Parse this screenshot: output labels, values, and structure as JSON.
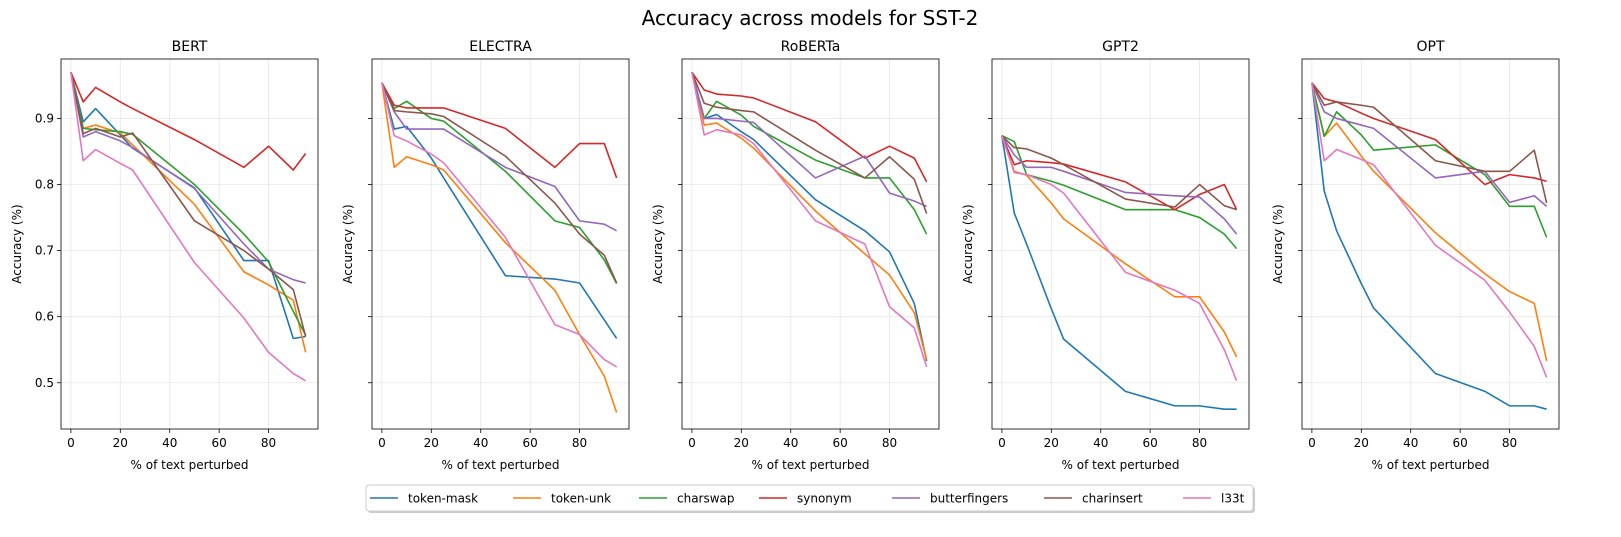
{
  "suptitle": "Accuracy across models for SST-2",
  "series_colors": {
    "token-mask": "#1f77b4",
    "token-unk": "#ff7f0e",
    "charswap": "#2ca02c",
    "synonym": "#d62728",
    "butterfingers": "#9467bd",
    "charinsert": "#8c564b",
    "l33t": "#e377c2"
  },
  "legend": [
    "token-mask",
    "token-unk",
    "charswap",
    "synonym",
    "butterfingers",
    "charinsert",
    "l33t"
  ],
  "chart_data": [
    {
      "type": "line",
      "title": "BERT",
      "xlabel": "% of text perturbed",
      "ylabel": "Accuracy (%)",
      "xlim": [
        -4,
        100
      ],
      "ylim": [
        0.43,
        0.99
      ],
      "xticks": [
        0,
        20,
        40,
        60,
        80
      ],
      "yticks": [
        0.5,
        0.6,
        0.7,
        0.8,
        0.9
      ],
      "grid": true,
      "x": [
        0,
        5,
        10,
        20,
        25,
        50,
        70,
        80,
        90,
        95
      ],
      "series": [
        {
          "name": "token-mask",
          "values": [
            0.97,
            0.895,
            0.915,
            0.875,
            0.855,
            0.795,
            0.685,
            0.685,
            0.567,
            0.57
          ]
        },
        {
          "name": "token-unk",
          "values": [
            0.97,
            0.885,
            0.89,
            0.878,
            0.86,
            0.77,
            0.668,
            0.648,
            0.625,
            0.546
          ]
        },
        {
          "name": "charswap",
          "values": [
            0.97,
            0.885,
            0.883,
            0.88,
            0.876,
            0.8,
            0.725,
            0.683,
            0.608,
            0.572
          ]
        },
        {
          "name": "synonym",
          "values": [
            0.97,
            0.925,
            0.947,
            0.925,
            0.915,
            0.868,
            0.826,
            0.858,
            0.822,
            0.847
          ]
        },
        {
          "name": "butterfingers",
          "values": [
            0.97,
            0.872,
            0.88,
            0.866,
            0.856,
            0.794,
            0.71,
            0.672,
            0.656,
            0.651
          ]
        },
        {
          "name": "charinsert",
          "values": [
            0.97,
            0.877,
            0.885,
            0.872,
            0.878,
            0.745,
            0.7,
            0.672,
            0.641,
            0.57
          ]
        },
        {
          "name": "l33t",
          "values": [
            0.97,
            0.836,
            0.853,
            0.832,
            0.822,
            0.682,
            0.598,
            0.546,
            0.514,
            0.503
          ]
        }
      ]
    },
    {
      "type": "line",
      "title": "ELECTRA",
      "xlabel": "% of text perturbed",
      "ylabel": "Accuracy (%)",
      "xlim": [
        -4,
        100
      ],
      "ylim": [
        0.43,
        0.99
      ],
      "xticks": [
        0,
        20,
        40,
        60,
        80
      ],
      "yticks": [
        0.5,
        0.6,
        0.7,
        0.8,
        0.9
      ],
      "grid": true,
      "x": [
        0,
        5,
        10,
        20,
        25,
        50,
        70,
        80,
        90,
        95
      ],
      "series": [
        {
          "name": "token-mask",
          "values": [
            0.954,
            0.884,
            0.888,
            0.84,
            0.81,
            0.662,
            0.657,
            0.651,
            0.595,
            0.567
          ]
        },
        {
          "name": "token-unk",
          "values": [
            0.954,
            0.826,
            0.842,
            0.83,
            0.822,
            0.712,
            0.64,
            0.573,
            0.51,
            0.455
          ]
        },
        {
          "name": "charswap",
          "values": [
            0.954,
            0.915,
            0.926,
            0.9,
            0.896,
            0.82,
            0.745,
            0.735,
            0.686,
            0.65
          ]
        },
        {
          "name": "synonym",
          "values": [
            0.954,
            0.92,
            0.916,
            0.916,
            0.916,
            0.885,
            0.826,
            0.862,
            0.862,
            0.81
          ]
        },
        {
          "name": "butterfingers",
          "values": [
            0.954,
            0.91,
            0.884,
            0.884,
            0.884,
            0.826,
            0.797,
            0.745,
            0.74,
            0.73
          ]
        },
        {
          "name": "charinsert",
          "values": [
            0.954,
            0.912,
            0.91,
            0.907,
            0.903,
            0.843,
            0.772,
            0.725,
            0.693,
            0.651
          ]
        },
        {
          "name": "l33t",
          "values": [
            0.954,
            0.874,
            0.866,
            0.846,
            0.833,
            0.72,
            0.588,
            0.573,
            0.535,
            0.524
          ]
        }
      ]
    },
    {
      "type": "line",
      "title": "RoBERTa",
      "xlabel": "% of text perturbed",
      "ylabel": "Accuracy (%)",
      "xlim": [
        -4,
        100
      ],
      "ylim": [
        0.43,
        0.99
      ],
      "xticks": [
        0,
        20,
        40,
        60,
        80
      ],
      "yticks": [
        0.5,
        0.6,
        0.7,
        0.8,
        0.9
      ],
      "grid": true,
      "x": [
        0,
        5,
        10,
        20,
        25,
        50,
        70,
        80,
        90,
        95
      ],
      "series": [
        {
          "name": "token-mask",
          "values": [
            0.97,
            0.9,
            0.906,
            0.88,
            0.868,
            0.777,
            0.73,
            0.698,
            0.62,
            0.533
          ]
        },
        {
          "name": "token-unk",
          "values": [
            0.97,
            0.89,
            0.893,
            0.87,
            0.855,
            0.76,
            0.695,
            0.663,
            0.606,
            0.535
          ]
        },
        {
          "name": "charswap",
          "values": [
            0.97,
            0.9,
            0.926,
            0.905,
            0.888,
            0.837,
            0.81,
            0.81,
            0.762,
            0.725
          ]
        },
        {
          "name": "synonym",
          "values": [
            0.97,
            0.943,
            0.937,
            0.934,
            0.931,
            0.895,
            0.84,
            0.858,
            0.84,
            0.804
          ]
        },
        {
          "name": "butterfingers",
          "values": [
            0.97,
            0.9,
            0.9,
            0.896,
            0.894,
            0.81,
            0.843,
            0.787,
            0.775,
            0.767
          ]
        },
        {
          "name": "charinsert",
          "values": [
            0.97,
            0.923,
            0.917,
            0.912,
            0.91,
            0.852,
            0.81,
            0.842,
            0.808,
            0.756
          ]
        },
        {
          "name": "l33t",
          "values": [
            0.97,
            0.875,
            0.883,
            0.875,
            0.862,
            0.745,
            0.71,
            0.615,
            0.583,
            0.524
          ]
        }
      ]
    },
    {
      "type": "line",
      "title": "GPT2",
      "xlabel": "% of text perturbed",
      "ylabel": "Accuracy (%)",
      "xlim": [
        -4,
        100
      ],
      "ylim": [
        0.43,
        0.99
      ],
      "xticks": [
        0,
        20,
        40,
        60,
        80
      ],
      "yticks": [
        0.5,
        0.6,
        0.7,
        0.8,
        0.9
      ],
      "grid": true,
      "x": [
        0,
        5,
        10,
        20,
        25,
        50,
        70,
        80,
        90,
        95
      ],
      "series": [
        {
          "name": "token-mask",
          "values": [
            0.874,
            0.757,
            0.71,
            0.612,
            0.566,
            0.487,
            0.465,
            0.465,
            0.46,
            0.46
          ]
        },
        {
          "name": "token-unk",
          "values": [
            0.874,
            0.82,
            0.814,
            0.772,
            0.748,
            0.68,
            0.63,
            0.63,
            0.577,
            0.539
          ]
        },
        {
          "name": "charswap",
          "values": [
            0.874,
            0.865,
            0.815,
            0.805,
            0.799,
            0.762,
            0.762,
            0.75,
            0.725,
            0.703
          ]
        },
        {
          "name": "synonym",
          "values": [
            0.874,
            0.83,
            0.836,
            0.833,
            0.831,
            0.804,
            0.762,
            0.785,
            0.8,
            0.762
          ]
        },
        {
          "name": "butterfingers",
          "values": [
            0.874,
            0.845,
            0.826,
            0.826,
            0.82,
            0.788,
            0.783,
            0.781,
            0.748,
            0.725
          ]
        },
        {
          "name": "charinsert",
          "values": [
            0.874,
            0.856,
            0.854,
            0.84,
            0.83,
            0.778,
            0.766,
            0.8,
            0.768,
            0.762
          ]
        },
        {
          "name": "l33t",
          "values": [
            0.874,
            0.818,
            0.815,
            0.8,
            0.787,
            0.667,
            0.64,
            0.62,
            0.55,
            0.503
          ]
        }
      ]
    },
    {
      "type": "line",
      "title": "OPT",
      "xlabel": "% of text perturbed",
      "ylabel": "Accuracy (%)",
      "xlim": [
        -4,
        100
      ],
      "ylim": [
        0.43,
        0.99
      ],
      "xticks": [
        0,
        20,
        40,
        60,
        80
      ],
      "yticks": [
        0.5,
        0.6,
        0.7,
        0.8,
        0.9
      ],
      "grid": true,
      "x": [
        0,
        5,
        10,
        20,
        25,
        50,
        70,
        80,
        90,
        95
      ],
      "series": [
        {
          "name": "token-mask",
          "values": [
            0.954,
            0.79,
            0.73,
            0.65,
            0.613,
            0.514,
            0.487,
            0.465,
            0.465,
            0.46
          ]
        },
        {
          "name": "token-unk",
          "values": [
            0.954,
            0.873,
            0.893,
            0.843,
            0.82,
            0.727,
            0.665,
            0.638,
            0.62,
            0.533
          ]
        },
        {
          "name": "charswap",
          "values": [
            0.954,
            0.873,
            0.91,
            0.875,
            0.852,
            0.86,
            0.815,
            0.767,
            0.767,
            0.72
          ]
        },
        {
          "name": "synonym",
          "values": [
            0.954,
            0.93,
            0.925,
            0.908,
            0.9,
            0.868,
            0.8,
            0.815,
            0.81,
            0.805
          ]
        },
        {
          "name": "butterfingers",
          "values": [
            0.954,
            0.91,
            0.9,
            0.89,
            0.885,
            0.81,
            0.82,
            0.773,
            0.783,
            0.767
          ]
        },
        {
          "name": "charinsert",
          "values": [
            0.954,
            0.92,
            0.925,
            0.92,
            0.917,
            0.836,
            0.82,
            0.82,
            0.852,
            0.772
          ]
        },
        {
          "name": "l33t",
          "values": [
            0.954,
            0.836,
            0.853,
            0.838,
            0.83,
            0.708,
            0.655,
            0.607,
            0.555,
            0.508
          ]
        }
      ]
    }
  ]
}
